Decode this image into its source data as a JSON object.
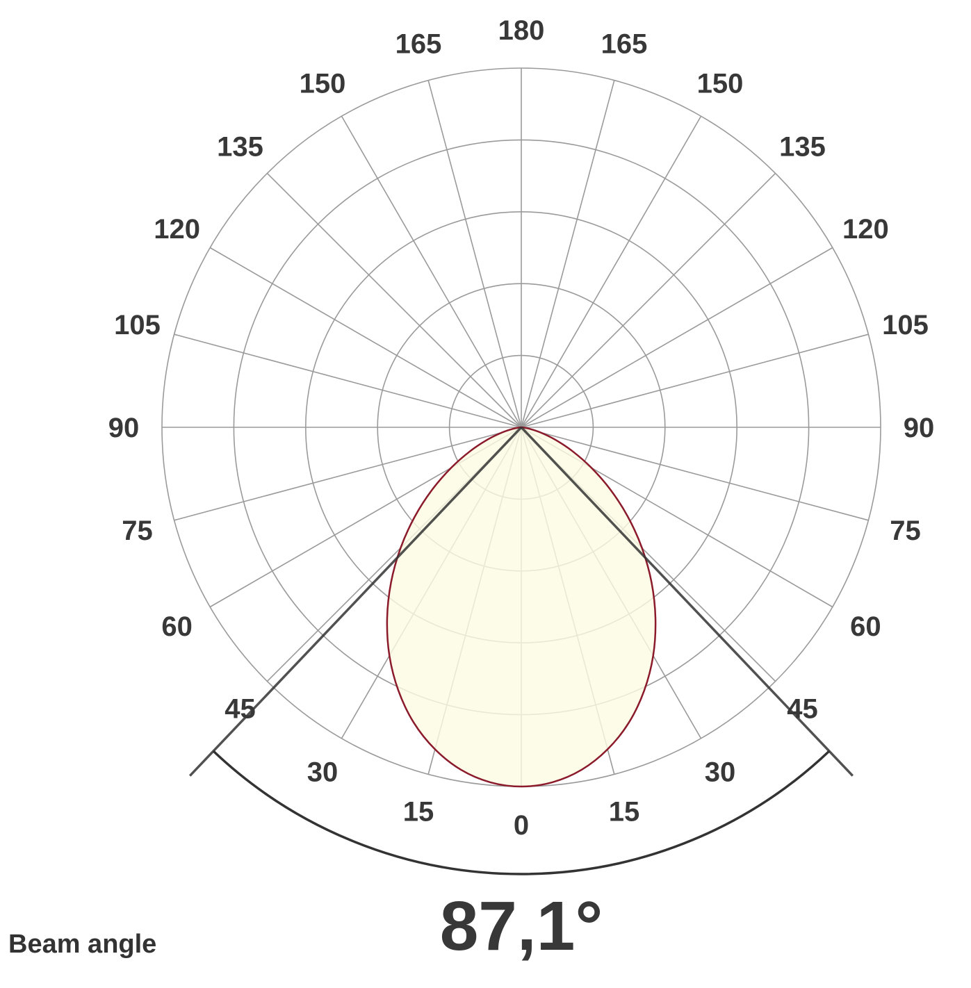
{
  "chart_data": {
    "type": "polar",
    "title": "",
    "angle_tick_labels": [
      "0",
      "15",
      "30",
      "45",
      "60",
      "75",
      "90",
      "105",
      "120",
      "135",
      "150",
      "165",
      "180"
    ],
    "angle_unit": "degrees",
    "radial_rings": 5,
    "radial_range": [
      0,
      1
    ],
    "grid": true,
    "series": [
      {
        "angles": [
          0,
          5,
          10,
          15,
          20,
          25,
          30,
          35,
          40,
          45,
          50,
          55,
          60,
          65,
          70,
          75,
          80,
          85,
          90
        ],
        "relative_intensity": [
          1.0,
          0.992,
          0.968,
          0.928,
          0.875,
          0.809,
          0.734,
          0.651,
          0.564,
          0.475,
          0.387,
          0.303,
          0.225,
          0.157,
          0.1,
          0.055,
          0.023,
          0.005,
          0.0
        ],
        "symmetric": true,
        "fill_color": "#fdfbe3",
        "line_color": "#8b1a2b"
      }
    ],
    "beam_angle_deg": 87.1,
    "grid_color": "#9a9a9a",
    "beam_marker_color": "#333333"
  },
  "beam": {
    "label": "Beam angle",
    "value": "87,1°"
  }
}
